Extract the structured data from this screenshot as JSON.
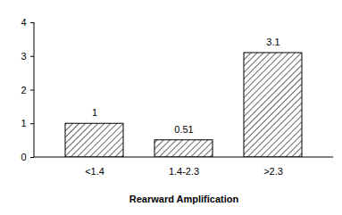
{
  "chart_data": {
    "type": "bar",
    "xlabel": "Rearward Amplification",
    "categories": [
      "<1.4",
      "1.4-2.3",
      ">2.3"
    ],
    "values": [
      1,
      0.51,
      3.1
    ],
    "color": "#000000",
    "ylim": [
      0,
      4
    ],
    "yticks": [
      0,
      1,
      2,
      3,
      4
    ],
    "grid": false,
    "data_labels": true
  }
}
